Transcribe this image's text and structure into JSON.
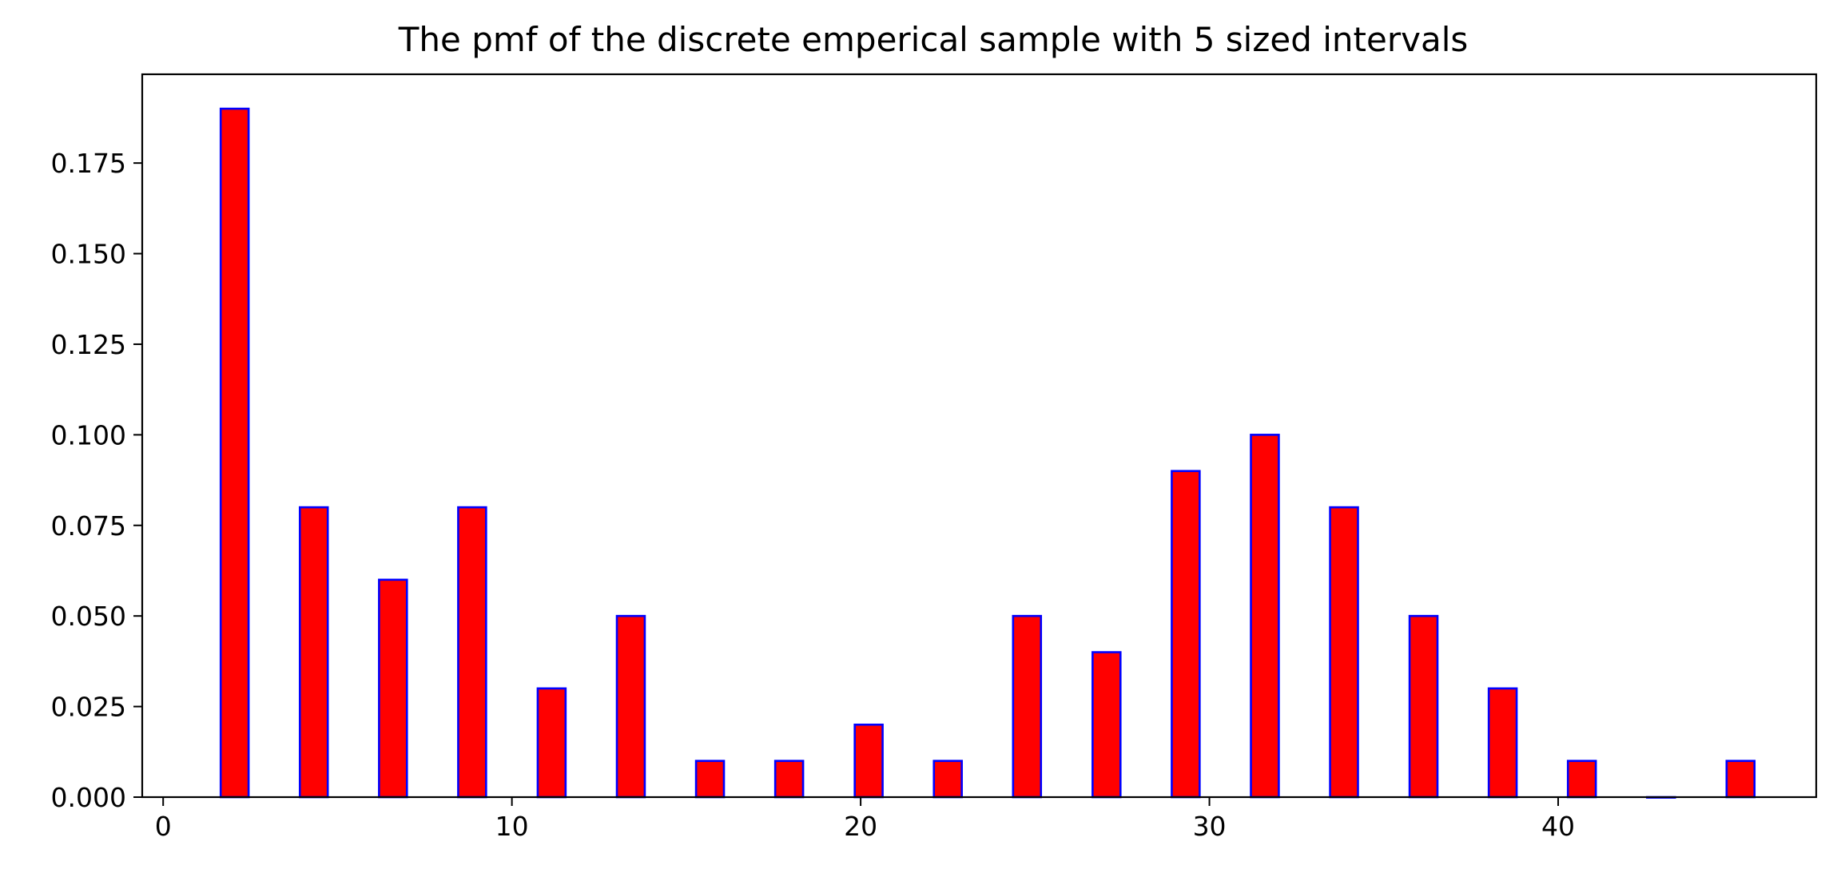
{
  "chart_data": {
    "type": "bar",
    "title": "The pmf of the discrete emperical sample with 5 sized intervals",
    "xlabel": "",
    "ylabel": "",
    "xlim": [
      -0.6,
      47.4
    ],
    "ylim": [
      0,
      0.1995
    ],
    "x": [
      2.05,
      4.32,
      6.59,
      8.86,
      11.14,
      13.41,
      15.68,
      17.95,
      20.23,
      22.5,
      24.77,
      27.05,
      29.32,
      31.59,
      33.86,
      36.14,
      38.41,
      40.68,
      42.95,
      45.23
    ],
    "values": [
      0.19,
      0.08,
      0.06,
      0.08,
      0.03,
      0.05,
      0.01,
      0.01,
      0.02,
      0.01,
      0.05,
      0.04,
      0.09,
      0.1,
      0.08,
      0.05,
      0.03,
      0.01,
      0.0,
      0.01
    ],
    "bar_width": 0.8,
    "bar_color": "#ff0000",
    "edge_color": "#0000ff",
    "x_ticks": [
      {
        "value": 0,
        "label": "0"
      },
      {
        "value": 10,
        "label": "10"
      },
      {
        "value": 20,
        "label": "20"
      },
      {
        "value": 30,
        "label": "30"
      },
      {
        "value": 40,
        "label": "40"
      }
    ],
    "y_ticks": [
      {
        "value": 0.0,
        "label": "0.000"
      },
      {
        "value": 0.025,
        "label": "0.025"
      },
      {
        "value": 0.05,
        "label": "0.050"
      },
      {
        "value": 0.075,
        "label": "0.075"
      },
      {
        "value": 0.1,
        "label": "0.100"
      },
      {
        "value": 0.125,
        "label": "0.125"
      },
      {
        "value": 0.15,
        "label": "0.150"
      },
      {
        "value": 0.175,
        "label": "0.175"
      }
    ],
    "grid": false,
    "legend": "none"
  }
}
